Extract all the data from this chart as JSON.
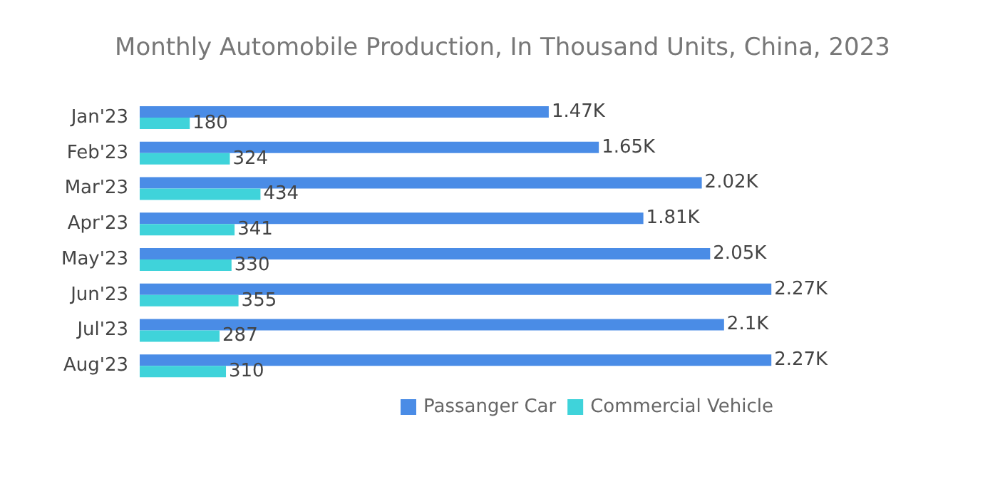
{
  "chart_data": {
    "type": "bar",
    "orientation": "horizontal",
    "title": "Monthly Automobile Production, In Thousand Units, China, 2023",
    "categories": [
      "Jan'23",
      "Feb'23",
      "Mar'23",
      "Apr'23",
      "May'23",
      "Jun'23",
      "Jul'23",
      "Aug'23"
    ],
    "series": [
      {
        "name": "Passanger Car",
        "color": "#4a8ce6",
        "values": [
          1470,
          1650,
          2020,
          1810,
          2050,
          2270,
          2100,
          2270
        ],
        "value_labels": [
          "1.47K",
          "1.65K",
          "2.02K",
          "1.81K",
          "2.05K",
          "2.27K",
          "2.1K",
          "2.27K"
        ]
      },
      {
        "name": "Commercial Vehicle",
        "color": "#3fd3da",
        "values": [
          180,
          324,
          434,
          341,
          330,
          355,
          287,
          310
        ],
        "value_labels": [
          "180",
          "324",
          "434",
          "341",
          "330",
          "355",
          "287",
          "310"
        ]
      }
    ],
    "legend": "bottom"
  }
}
